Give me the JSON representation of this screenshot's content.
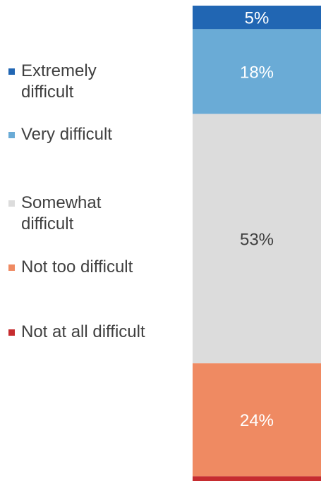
{
  "chart_data": {
    "type": "bar",
    "stacked": true,
    "orientation": "vertical",
    "categories": [
      ""
    ],
    "series": [
      {
        "name": "Extremely difficult",
        "values": [
          5
        ],
        "color": "#2166b3",
        "label": "5%",
        "label_color": "#ffffff"
      },
      {
        "name": "Very difficult",
        "values": [
          18
        ],
        "color": "#6aabd6",
        "label": "18%",
        "label_color": "#ffffff"
      },
      {
        "name": "Somewhat difficult",
        "values": [
          53
        ],
        "color": "#dcdcdc",
        "label": "53%",
        "label_color": "#404040"
      },
      {
        "name": "Not too difficult",
        "values": [
          24
        ],
        "color": "#ef8a62",
        "label": "24%",
        "label_color": "#ffffff"
      },
      {
        "name": "Not at all difficult",
        "values": [
          1
        ],
        "color": "#c62c2f",
        "label": "",
        "label_color": "#ffffff"
      }
    ],
    "legend": {
      "position": "left"
    },
    "grid": false,
    "title": "",
    "xlabel": "",
    "ylabel": ""
  }
}
